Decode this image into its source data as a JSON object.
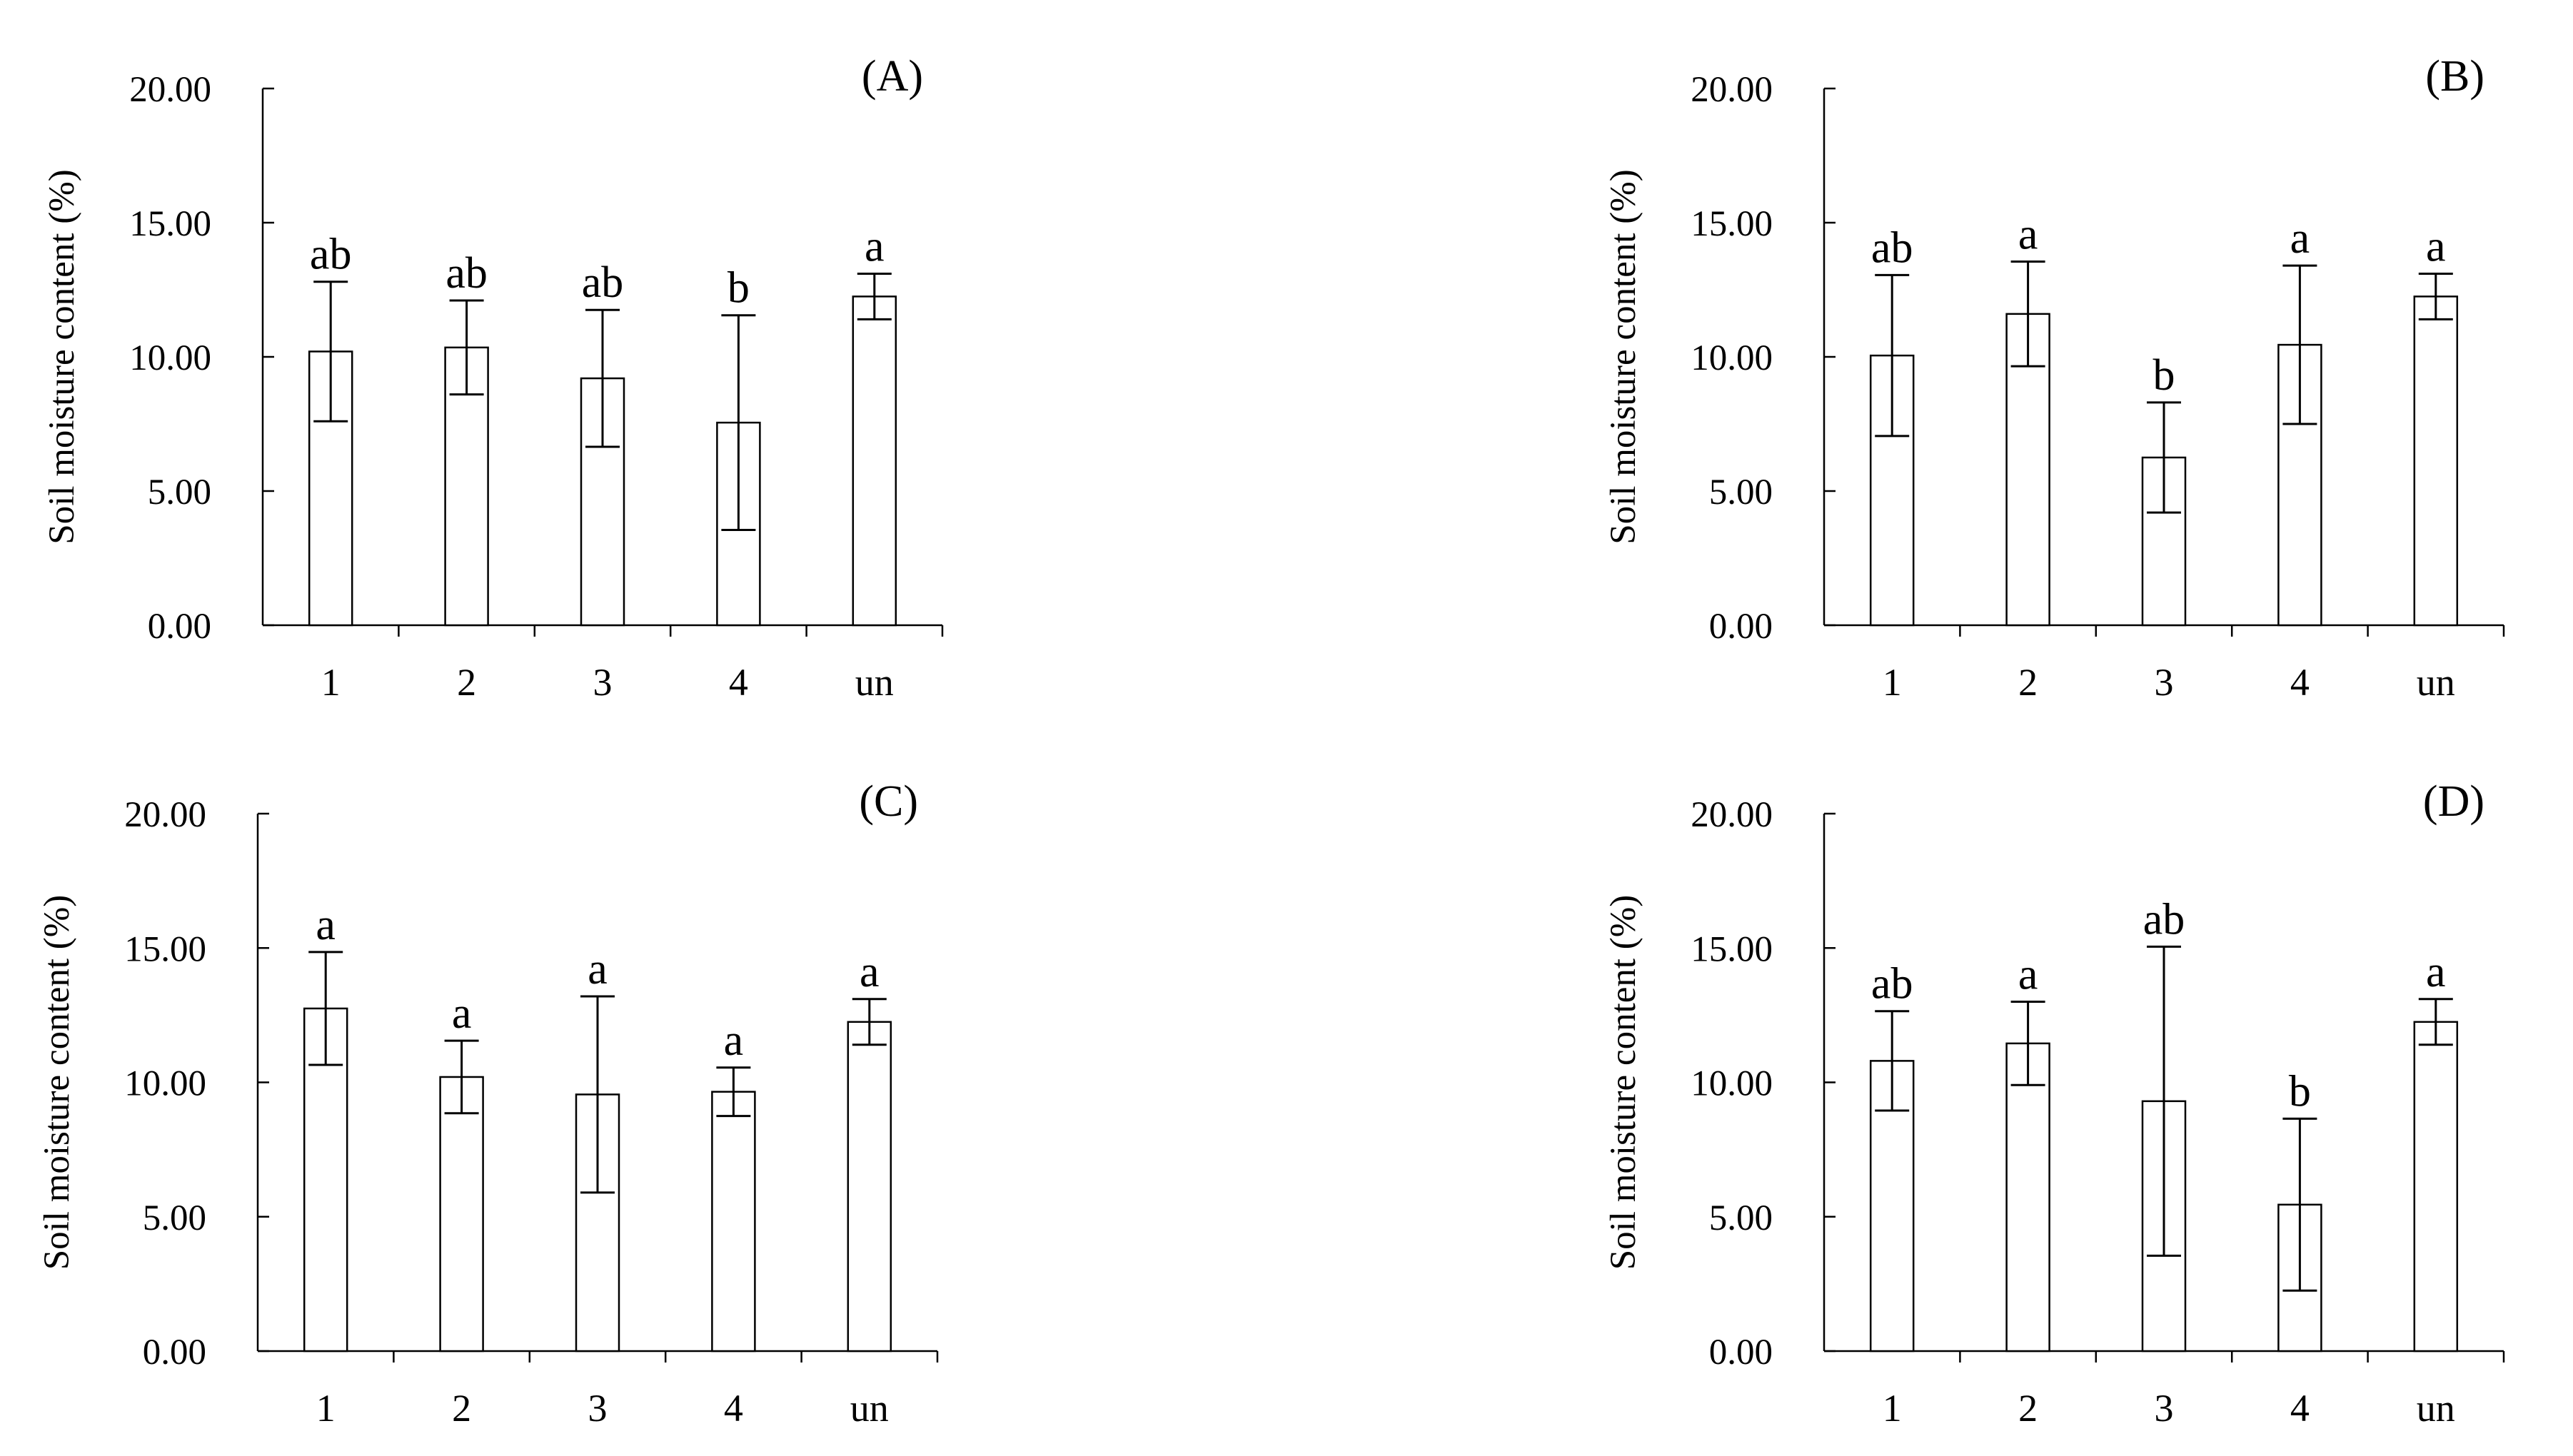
{
  "figure": {
    "ylabel": "Soil moisture content (%)",
    "yticks": [
      "0.00",
      "5.00",
      "10.00",
      "15.00",
      "20.00"
    ]
  },
  "chart_data": [
    {
      "type": "bar",
      "title": "(A)",
      "categories": [
        "1",
        "2",
        "3",
        "4",
        "un"
      ],
      "values": [
        10.2,
        10.35,
        9.2,
        7.55,
        12.25
      ],
      "error": [
        2.6,
        1.75,
        2.55,
        4.0,
        0.85
      ],
      "letters": [
        "ab",
        "ab",
        "ab",
        "b",
        "a"
      ],
      "ylabel": "Soil moisture content (%)",
      "ylim": [
        0,
        20
      ]
    },
    {
      "type": "bar",
      "title": "(B)",
      "categories": [
        "1",
        "2",
        "3",
        "4",
        "un"
      ],
      "values": [
        10.05,
        11.6,
        6.25,
        10.45,
        12.25
      ],
      "error": [
        3.0,
        1.95,
        2.05,
        2.95,
        0.85
      ],
      "letters": [
        "ab",
        "a",
        "b",
        "a",
        "a"
      ],
      "ylabel": "Soil moisture content (%)",
      "ylim": [
        0,
        20
      ]
    },
    {
      "type": "bar",
      "title": "(C)",
      "categories": [
        "1",
        "2",
        "3",
        "4",
        "un"
      ],
      "values": [
        12.75,
        10.2,
        9.55,
        9.65,
        12.25
      ],
      "error": [
        2.1,
        1.35,
        3.65,
        0.9,
        0.85
      ],
      "letters": [
        "a",
        "a",
        "a",
        "a",
        "a"
      ],
      "ylabel": "Soil moisture content (%)",
      "ylim": [
        0,
        20
      ]
    },
    {
      "type": "bar",
      "title": "(D)",
      "categories": [
        "1",
        "2",
        "3",
        "4",
        "un"
      ],
      "values": [
        10.8,
        11.45,
        9.3,
        5.45,
        12.25
      ],
      "error": [
        1.85,
        1.55,
        5.75,
        3.2,
        0.85
      ],
      "letters": [
        "ab",
        "a",
        "ab",
        "b",
        "a"
      ],
      "ylabel": "Soil moisture content (%)",
      "ylim": [
        0,
        20
      ]
    }
  ]
}
